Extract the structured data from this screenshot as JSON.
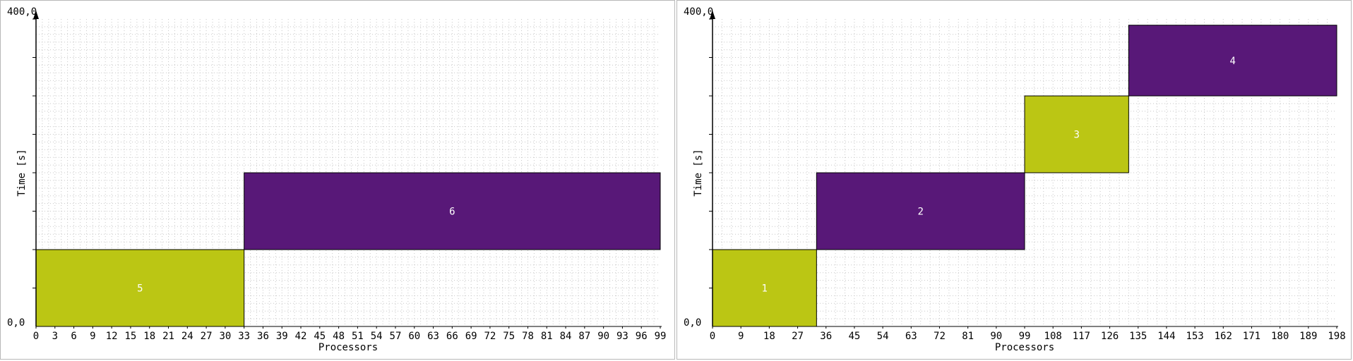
{
  "chart_data": [
    {
      "type": "gantt",
      "ylabel": "Time [s]",
      "xlabel": "Processors",
      "y_top_label": "400,0",
      "y_bottom_label": "0,0",
      "ylim": [
        0,
        400
      ],
      "xlim": [
        0,
        99
      ],
      "x_ticks": [
        "0",
        "3",
        "6",
        "9",
        "12",
        "15",
        "18",
        "21",
        "24",
        "27",
        "30",
        "33",
        "36",
        "39",
        "42",
        "45",
        "48",
        "51",
        "54",
        "57",
        "60",
        "63",
        "66",
        "69",
        "72",
        "75",
        "78",
        "81",
        "84",
        "87",
        "90",
        "93",
        "96",
        "99"
      ],
      "blocks": [
        {
          "label": "5",
          "x_start": 0,
          "x_end": 33,
          "y_start": 0,
          "y_end": 100,
          "color": "#bbc614"
        },
        {
          "label": "6",
          "x_start": 33,
          "x_end": 99,
          "y_start": 100,
          "y_end": 200,
          "color": "#581878"
        }
      ]
    },
    {
      "type": "gantt",
      "ylabel": "Time [s]",
      "xlabel": "Processors",
      "y_top_label": "400,0",
      "y_bottom_label": "0,0",
      "ylim": [
        0,
        400
      ],
      "xlim": [
        0,
        198
      ],
      "x_ticks": [
        "0",
        "9",
        "18",
        "27",
        "36",
        "45",
        "54",
        "63",
        "72",
        "81",
        "90",
        "99",
        "108",
        "117",
        "126",
        "135",
        "144",
        "153",
        "162",
        "171",
        "180",
        "189",
        "198"
      ],
      "blocks": [
        {
          "label": "1",
          "x_start": 0,
          "x_end": 33,
          "y_start": 0,
          "y_end": 100,
          "color": "#bbc614"
        },
        {
          "label": "2",
          "x_start": 33,
          "x_end": 99,
          "y_start": 100,
          "y_end": 200,
          "color": "#581878"
        },
        {
          "label": "3",
          "x_start": 99,
          "x_end": 132,
          "y_start": 200,
          "y_end": 300,
          "color": "#bbc614"
        },
        {
          "label": "4",
          "x_start": 132,
          "x_end": 198,
          "y_start": 300,
          "y_end": 392,
          "color": "#581878"
        }
      ]
    }
  ]
}
